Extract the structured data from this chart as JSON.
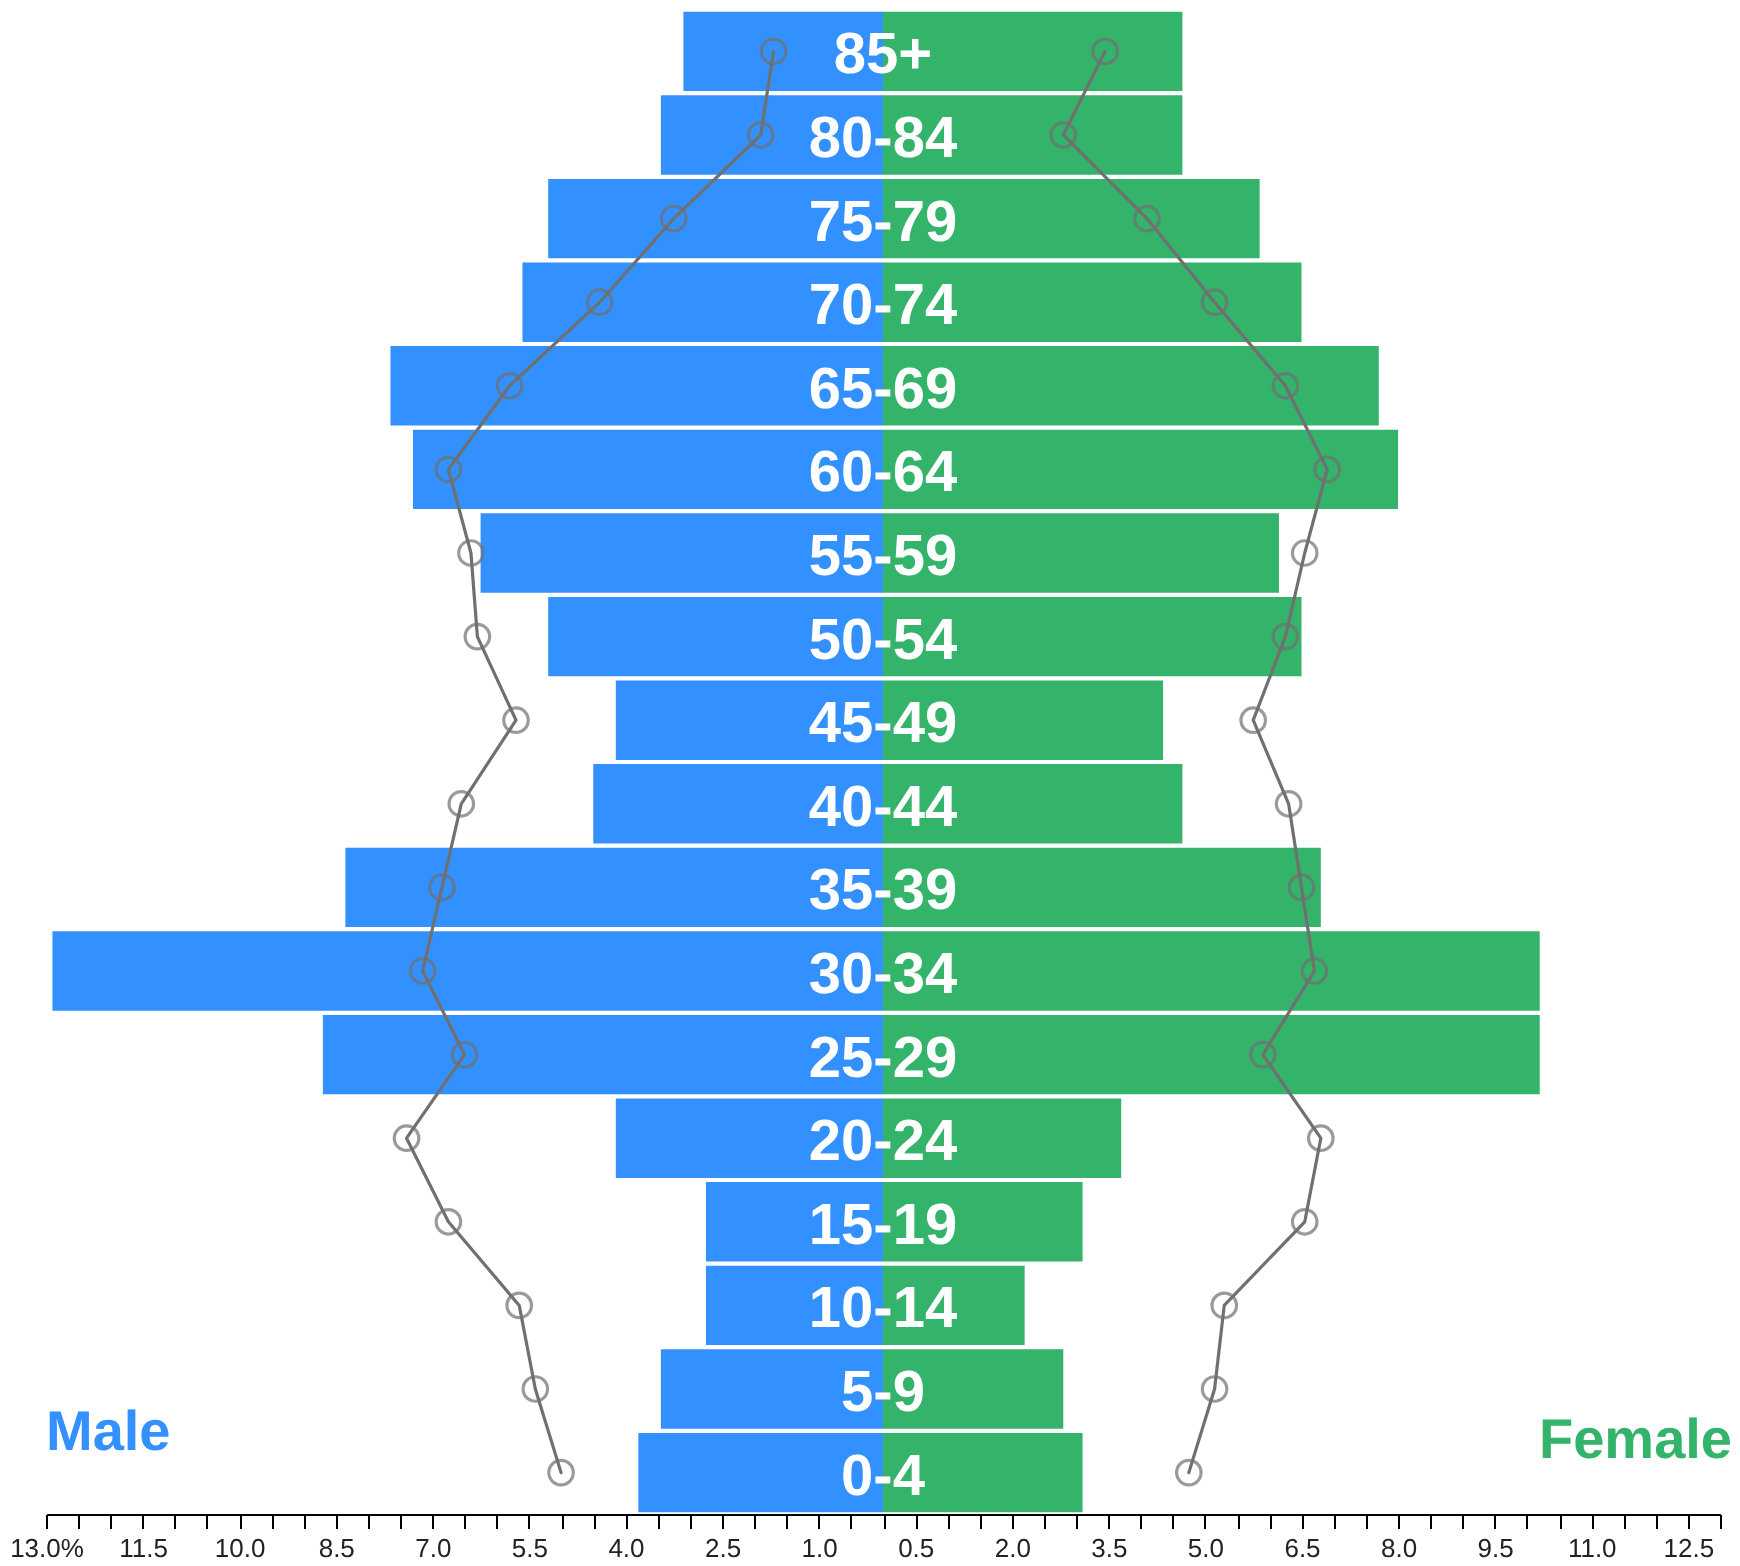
{
  "chart_data": {
    "type": "bar",
    "orientation": "horizontal",
    "stacked": true,
    "categories": [
      "85+",
      "80-84",
      "75-79",
      "70-74",
      "65-69",
      "60-64",
      "55-59",
      "50-54",
      "45-49",
      "40-44",
      "35-39",
      "30-34",
      "25-29",
      "20-24",
      "15-19",
      "10-14",
      "5-9",
      "0-4"
    ],
    "series": [
      {
        "name": "Male",
        "color": "#3391ff",
        "values": [
          -3.1,
          -3.45,
          -5.2,
          -5.6,
          -7.65,
          -7.3,
          -6.25,
          -5.2,
          -4.15,
          -4.5,
          -8.35,
          -12.9,
          -8.7,
          -4.15,
          -2.75,
          -2.75,
          -3.45,
          -3.8
        ]
      },
      {
        "name": "Female",
        "color": "#34b36b",
        "values": [
          4.65,
          4.65,
          5.85,
          6.5,
          7.7,
          8.0,
          6.15,
          6.5,
          4.35,
          4.65,
          6.8,
          10.2,
          10.2,
          3.7,
          3.1,
          2.2,
          2.8,
          3.1
        ]
      },
      {
        "type": "line",
        "color": "#707070",
        "values": [
          -1.7,
          -1.9,
          -3.25,
          -4.4,
          -5.8,
          -6.75,
          -6.4,
          -6.3,
          -5.7,
          -6.55,
          -6.85,
          -7.15,
          -6.5,
          -7.4,
          -6.75,
          -5.65,
          -5.4,
          -5.0
        ]
      },
      {
        "type": "line",
        "color": "#707070",
        "values": [
          3.45,
          2.8,
          4.1,
          5.15,
          6.25,
          6.9,
          6.55,
          6.25,
          5.75,
          6.3,
          6.5,
          6.7,
          5.9,
          6.8,
          6.55,
          5.3,
          5.15,
          4.75
        ]
      }
    ],
    "marker": "circle",
    "xlim": [
      -13,
      13
    ],
    "xticks": [
      {
        "value": -13,
        "label": "13.0%"
      },
      {
        "value": -12.5,
        "label": null
      },
      {
        "value": -12,
        "label": null
      },
      {
        "value": -11.5,
        "label": "11.5"
      },
      {
        "value": -11,
        "label": null
      },
      {
        "value": -10.5,
        "label": null
      },
      {
        "value": -10,
        "label": "10.0"
      },
      {
        "value": -9.5,
        "label": null
      },
      {
        "value": -9,
        "label": null
      },
      {
        "value": -8.5,
        "label": "8.5"
      },
      {
        "value": -8,
        "label": null
      },
      {
        "value": -7.5,
        "label": null
      },
      {
        "value": -7,
        "label": "7.0"
      },
      {
        "value": -6.5,
        "label": null
      },
      {
        "value": -6,
        "label": null
      },
      {
        "value": -5.5,
        "label": "5.5"
      },
      {
        "value": -5,
        "label": null
      },
      {
        "value": -4.5,
        "label": null
      },
      {
        "value": -4,
        "label": "4.0"
      },
      {
        "value": -3.5,
        "label": null
      },
      {
        "value": -3,
        "label": null
      },
      {
        "value": -2.5,
        "label": "2.5"
      },
      {
        "value": -2,
        "label": null
      },
      {
        "value": -1.5,
        "label": null
      },
      {
        "value": -1,
        "label": "1.0"
      },
      {
        "value": -0.5,
        "label": null
      },
      {
        "value": 0,
        "label": null
      },
      {
        "value": 0.5,
        "label": "0.5"
      },
      {
        "value": 1,
        "label": null
      },
      {
        "value": 1.5,
        "label": null
      },
      {
        "value": 2,
        "label": "2.0"
      },
      {
        "value": 2.5,
        "label": null
      },
      {
        "value": 3,
        "label": null
      },
      {
        "value": 3.5,
        "label": "3.5"
      },
      {
        "value": 4,
        "label": null
      },
      {
        "value": 4.5,
        "label": null
      },
      {
        "value": 5,
        "label": "5.0"
      },
      {
        "value": 5.5,
        "label": null
      },
      {
        "value": 6,
        "label": null
      },
      {
        "value": 6.5,
        "label": "6.5"
      },
      {
        "value": 7,
        "label": null
      },
      {
        "value": 7.5,
        "label": null
      },
      {
        "value": 8,
        "label": "8.0"
      },
      {
        "value": 8.5,
        "label": null
      },
      {
        "value": 9,
        "label": null
      },
      {
        "value": 9.5,
        "label": "9.5"
      },
      {
        "value": 10,
        "label": null
      },
      {
        "value": 10.5,
        "label": null
      },
      {
        "value": 11,
        "label": "11.0"
      },
      {
        "value": 11.5,
        "label": null
      },
      {
        "value": 12,
        "label": null
      },
      {
        "value": 12.5,
        "label": "12.5"
      },
      {
        "value": 13,
        "label": null
      }
    ]
  }
}
